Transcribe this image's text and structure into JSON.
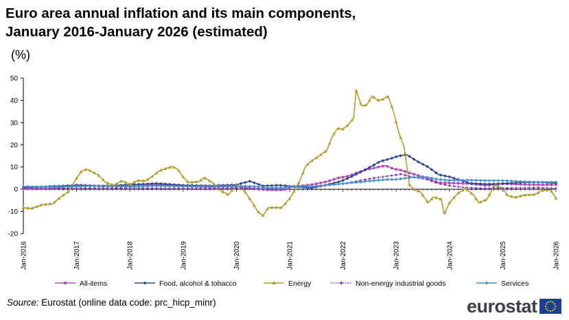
{
  "title_line1": "Euro area annual inflation and its main components,",
  "title_line2": "January 2016-January 2026 (estimated)",
  "unit": "(%)",
  "source_label": "Source:",
  "source_text": " Eurostat (online data code: prc_hicp_minr)",
  "logo_text": "eurostat",
  "chart_data": {
    "type": "line",
    "title": "Euro area annual inflation and its main components, January 2016-January 2026 (estimated)",
    "ylabel": "(%)",
    "ylim": [
      -20,
      50
    ],
    "yticks": [
      -20,
      -10,
      0,
      10,
      20,
      30,
      40,
      50
    ],
    "xlim": [
      2016.0,
      2026.0
    ],
    "xticks": [
      {
        "x": 2016,
        "label": "Jan-2016"
      },
      {
        "x": 2017,
        "label": "Jan-2017"
      },
      {
        "x": 2018,
        "label": "Jan-2018"
      },
      {
        "x": 2019,
        "label": "Jan-2019"
      },
      {
        "x": 2020,
        "label": "Jan-2020"
      },
      {
        "x": 2021,
        "label": "Jan-2021"
      },
      {
        "x": 2022,
        "label": "Jan-2022"
      },
      {
        "x": 2023,
        "label": "Jan-2023"
      },
      {
        "x": 2024,
        "label": "Jan-2024"
      },
      {
        "x": 2025,
        "label": "Jan-2025"
      },
      {
        "x": 2026,
        "label": "Jan-2026"
      }
    ],
    "gridlines": false,
    "legend_position": "bottom",
    "series": [
      {
        "name": "All-items",
        "color": "#b54fb8",
        "marker": "square",
        "points": [
          [
            2016.0,
            0.3
          ],
          [
            2016.5,
            0.2
          ],
          [
            2017.0,
            1.8
          ],
          [
            2017.5,
            1.4
          ],
          [
            2018.0,
            1.3
          ],
          [
            2018.5,
            2.1
          ],
          [
            2019.0,
            1.4
          ],
          [
            2019.5,
            1.0
          ],
          [
            2020.0,
            1.4
          ],
          [
            2020.3,
            0.3
          ],
          [
            2020.6,
            -0.3
          ],
          [
            2020.9,
            -0.3
          ],
          [
            2021.0,
            0.9
          ],
          [
            2021.4,
            2.0
          ],
          [
            2021.7,
            3.4
          ],
          [
            2021.9,
            5.0
          ],
          [
            2022.1,
            5.9
          ],
          [
            2022.4,
            8.6
          ],
          [
            2022.65,
            9.9
          ],
          [
            2022.8,
            10.6
          ],
          [
            2022.95,
            9.2
          ],
          [
            2023.1,
            8.5
          ],
          [
            2023.3,
            7.0
          ],
          [
            2023.55,
            5.2
          ],
          [
            2023.8,
            2.9
          ],
          [
            2024.0,
            2.8
          ],
          [
            2024.4,
            2.5
          ],
          [
            2024.7,
            1.7
          ],
          [
            2025.0,
            2.5
          ],
          [
            2025.5,
            2.0
          ],
          [
            2026.0,
            2.0
          ]
        ]
      },
      {
        "name": "Food, alcohol & tobacco",
        "color": "#2a4396",
        "marker": "diamond",
        "points": [
          [
            2016.0,
            0.7
          ],
          [
            2016.5,
            1.3
          ],
          [
            2017.0,
            1.8
          ],
          [
            2017.5,
            1.4
          ],
          [
            2018.0,
            2.0
          ],
          [
            2018.5,
            2.6
          ],
          [
            2019.0,
            1.8
          ],
          [
            2019.5,
            1.6
          ],
          [
            2020.0,
            2.0
          ],
          [
            2020.25,
            3.6
          ],
          [
            2020.5,
            1.5
          ],
          [
            2020.8,
            1.8
          ],
          [
            2021.0,
            1.4
          ],
          [
            2021.4,
            0.5
          ],
          [
            2021.7,
            2.0
          ],
          [
            2021.95,
            3.5
          ],
          [
            2022.1,
            5.0
          ],
          [
            2022.4,
            8.5
          ],
          [
            2022.7,
            12.5
          ],
          [
            2022.9,
            13.8
          ],
          [
            2023.05,
            15.0
          ],
          [
            2023.2,
            15.5
          ],
          [
            2023.4,
            12.5
          ],
          [
            2023.6,
            10.0
          ],
          [
            2023.8,
            6.5
          ],
          [
            2024.0,
            5.6
          ],
          [
            2024.4,
            2.6
          ],
          [
            2024.7,
            2.3
          ],
          [
            2025.0,
            2.5
          ],
          [
            2025.4,
            3.1
          ],
          [
            2025.7,
            3.2
          ],
          [
            2026.0,
            2.7
          ]
        ]
      },
      {
        "name": "Energy",
        "color": "#b39a2b",
        "marker": "triangle",
        "points": [
          [
            2016.0,
            -8.3
          ],
          [
            2016.15,
            -8.7
          ],
          [
            2016.35,
            -7.0
          ],
          [
            2016.55,
            -6.5
          ],
          [
            2016.7,
            -3.5
          ],
          [
            2016.85,
            -1.0
          ],
          [
            2017.0,
            5.0
          ],
          [
            2017.1,
            8.3
          ],
          [
            2017.2,
            9.0
          ],
          [
            2017.4,
            6.5
          ],
          [
            2017.55,
            3.0
          ],
          [
            2017.7,
            1.8
          ],
          [
            2017.85,
            3.8
          ],
          [
            2018.0,
            2.2
          ],
          [
            2018.15,
            3.9
          ],
          [
            2018.3,
            3.8
          ],
          [
            2018.45,
            6.3
          ],
          [
            2018.55,
            8.3
          ],
          [
            2018.7,
            9.5
          ],
          [
            2018.8,
            10.2
          ],
          [
            2018.9,
            9.0
          ],
          [
            2019.0,
            5.5
          ],
          [
            2019.1,
            3.0
          ],
          [
            2019.3,
            3.5
          ],
          [
            2019.4,
            5.2
          ],
          [
            2019.55,
            3.0
          ],
          [
            2019.7,
            -0.5
          ],
          [
            2019.85,
            -2.5
          ],
          [
            2020.0,
            1.9
          ],
          [
            2020.15,
            -0.8
          ],
          [
            2020.3,
            -6.0
          ],
          [
            2020.4,
            -10.0
          ],
          [
            2020.5,
            -11.9
          ],
          [
            2020.6,
            -8.3
          ],
          [
            2020.75,
            -8.2
          ],
          [
            2020.85,
            -8.3
          ],
          [
            2021.0,
            -4.2
          ],
          [
            2021.1,
            -0.3
          ],
          [
            2021.2,
            4.3
          ],
          [
            2021.3,
            10.4
          ],
          [
            2021.4,
            12.5
          ],
          [
            2021.55,
            14.9
          ],
          [
            2021.7,
            17.6
          ],
          [
            2021.8,
            23.7
          ],
          [
            2021.9,
            27.4
          ],
          [
            2022.0,
            27.0
          ],
          [
            2022.1,
            29.0
          ],
          [
            2022.2,
            32.0
          ],
          [
            2022.25,
            44.4
          ],
          [
            2022.35,
            37.5
          ],
          [
            2022.45,
            38.0
          ],
          [
            2022.55,
            42.0
          ],
          [
            2022.65,
            40.0
          ],
          [
            2022.75,
            40.5
          ],
          [
            2022.85,
            41.9
          ],
          [
            2022.95,
            34.9
          ],
          [
            2023.05,
            25.5
          ],
          [
            2023.15,
            18.9
          ],
          [
            2023.25,
            2.0
          ],
          [
            2023.35,
            -0.5
          ],
          [
            2023.45,
            -1.0
          ],
          [
            2023.6,
            -6.1
          ],
          [
            2023.7,
            -3.5
          ],
          [
            2023.85,
            -4.6
          ],
          [
            2023.9,
            -11.2
          ],
          [
            2024.0,
            -6.1
          ],
          [
            2024.15,
            -2.0
          ],
          [
            2024.3,
            0.3
          ],
          [
            2024.45,
            -2.5
          ],
          [
            2024.55,
            -6.1
          ],
          [
            2024.7,
            -4.6
          ],
          [
            2024.85,
            1.9
          ],
          [
            2025.0,
            0.3
          ],
          [
            2025.1,
            -3.0
          ],
          [
            2025.25,
            -3.6
          ],
          [
            2025.4,
            -2.6
          ],
          [
            2025.6,
            -2.4
          ],
          [
            2025.75,
            -0.5
          ],
          [
            2025.9,
            -0.3
          ],
          [
            2026.0,
            -4.1
          ]
        ]
      },
      {
        "name": "Non-energy industrial goods",
        "color": "#7e2fbf",
        "marker": "diamond-small",
        "dotted": true,
        "points": [
          [
            2016.0,
            0.7
          ],
          [
            2016.5,
            0.4
          ],
          [
            2017.0,
            0.5
          ],
          [
            2017.5,
            0.4
          ],
          [
            2018.0,
            0.5
          ],
          [
            2018.5,
            0.4
          ],
          [
            2019.0,
            0.3
          ],
          [
            2019.5,
            0.3
          ],
          [
            2020.0,
            0.5
          ],
          [
            2020.5,
            0.2
          ],
          [
            2020.8,
            0.0
          ],
          [
            2021.0,
            1.5
          ],
          [
            2021.5,
            1.2
          ],
          [
            2021.8,
            2.0
          ],
          [
            2022.0,
            2.5
          ],
          [
            2022.3,
            3.8
          ],
          [
            2022.6,
            5.1
          ],
          [
            2022.9,
            6.1
          ],
          [
            2023.1,
            6.8
          ],
          [
            2023.3,
            5.4
          ],
          [
            2023.55,
            4.6
          ],
          [
            2023.8,
            2.5
          ],
          [
            2024.0,
            1.6
          ],
          [
            2024.3,
            0.7
          ],
          [
            2024.6,
            0.4
          ],
          [
            2025.0,
            0.5
          ],
          [
            2025.4,
            0.6
          ],
          [
            2025.7,
            0.6
          ],
          [
            2026.0,
            0.4
          ]
        ]
      },
      {
        "name": "Services",
        "color": "#3e8fd0",
        "marker": "diamond",
        "points": [
          [
            2016.0,
            1.2
          ],
          [
            2016.5,
            1.1
          ],
          [
            2017.0,
            1.3
          ],
          [
            2017.5,
            1.6
          ],
          [
            2018.0,
            1.2
          ],
          [
            2018.5,
            1.5
          ],
          [
            2019.0,
            1.3
          ],
          [
            2019.5,
            1.4
          ],
          [
            2020.0,
            1.5
          ],
          [
            2020.3,
            1.3
          ],
          [
            2020.6,
            0.6
          ],
          [
            2020.9,
            0.7
          ],
          [
            2021.0,
            1.4
          ],
          [
            2021.4,
            1.1
          ],
          [
            2021.7,
            1.9
          ],
          [
            2021.95,
            2.4
          ],
          [
            2022.2,
            3.0
          ],
          [
            2022.5,
            3.7
          ],
          [
            2022.8,
            4.3
          ],
          [
            2023.0,
            4.4
          ],
          [
            2023.3,
            5.4
          ],
          [
            2023.55,
            5.5
          ],
          [
            2023.8,
            4.4
          ],
          [
            2024.0,
            4.0
          ],
          [
            2024.4,
            4.1
          ],
          [
            2024.7,
            3.9
          ],
          [
            2025.0,
            3.9
          ],
          [
            2025.4,
            3.4
          ],
          [
            2025.7,
            3.2
          ],
          [
            2026.0,
            3.2
          ]
        ]
      }
    ]
  }
}
